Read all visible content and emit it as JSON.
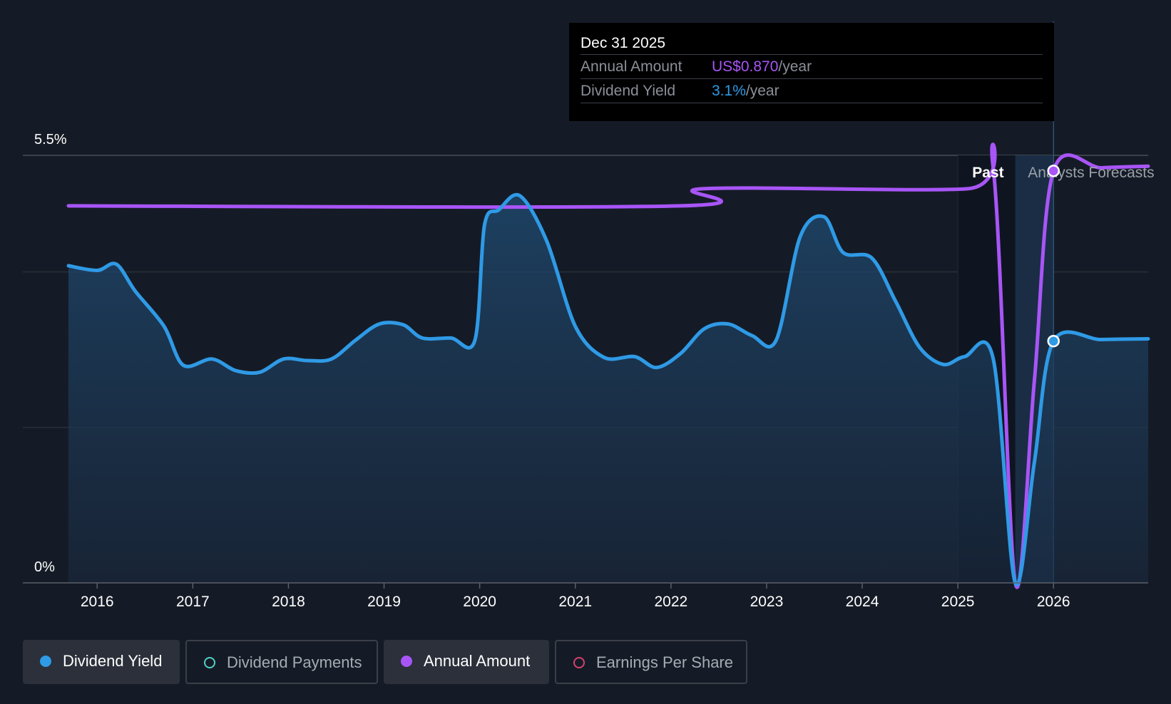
{
  "tooltip": {
    "date": "Dec 31 2025",
    "annual_label": "Annual Amount",
    "annual_value": "US$0.870",
    "annual_unit": "/year",
    "yield_label": "Dividend Yield",
    "yield_value": "3.1%",
    "yield_unit": "/year"
  },
  "legend": [
    {
      "label": "Dividend Yield",
      "color": "#2f9ae6",
      "active": true
    },
    {
      "label": "Dividend Payments",
      "color": "#4fd1c5",
      "active": false
    },
    {
      "label": "Annual Amount",
      "color": "#a855f7",
      "active": true
    },
    {
      "label": "Earnings Per Share",
      "color": "#d6406e",
      "active": false
    }
  ],
  "chart_data": {
    "type": "line",
    "y_tick_labels": [
      "5.5%",
      "0%"
    ],
    "ylim": [
      0,
      5.5
    ],
    "x_tick_labels": [
      "2016",
      "2017",
      "2018",
      "2019",
      "2020",
      "2021",
      "2022",
      "2023",
      "2024",
      "2025",
      "2026"
    ],
    "xlim": [
      2015.7,
      2026.99
    ],
    "region_labels": {
      "past": "Past",
      "forecast": "Analysts Forecasts"
    },
    "past_end": 2025.0,
    "forecast_start": 2026.0,
    "series": [
      {
        "name": "Dividend Yield",
        "color": "#2f9ae6",
        "x": [
          2015.7,
          2016.0,
          2016.2,
          2016.4,
          2016.7,
          2016.9,
          2017.2,
          2017.45,
          2017.7,
          2017.95,
          2018.2,
          2018.45,
          2018.7,
          2018.95,
          2019.2,
          2019.4,
          2019.7,
          2019.95,
          2020.05,
          2020.2,
          2020.42,
          2020.7,
          2021.0,
          2021.3,
          2021.62,
          2021.85,
          2022.1,
          2022.35,
          2022.6,
          2022.85,
          2023.1,
          2023.35,
          2023.6,
          2023.8,
          2024.1,
          2024.35,
          2024.6,
          2024.85,
          2025.07,
          2025.37,
          2025.6,
          2025.8,
          2026.0,
          2026.5,
          2026.99
        ],
        "y": [
          4.08,
          4.02,
          4.1,
          3.75,
          3.3,
          2.8,
          2.88,
          2.73,
          2.71,
          2.88,
          2.86,
          2.88,
          3.12,
          3.33,
          3.32,
          3.15,
          3.15,
          3.12,
          4.6,
          4.8,
          4.98,
          4.4,
          3.3,
          2.9,
          2.91,
          2.77,
          2.95,
          3.27,
          3.33,
          3.18,
          3.12,
          4.45,
          4.71,
          4.25,
          4.18,
          3.62,
          3.03,
          2.81,
          2.91,
          2.88,
          0.0,
          1.55,
          3.11,
          3.13,
          3.14
        ]
      },
      {
        "name": "Annual Amount",
        "color": "#a855f7",
        "x": [
          2015.7,
          2022.1,
          2022.33,
          2025.1,
          2025.37,
          2025.6,
          2025.8,
          2026.0,
          2026.5,
          2026.99
        ],
        "y": [
          4.85,
          4.85,
          5.07,
          5.07,
          5.33,
          0.0,
          2.6,
          5.3,
          5.34,
          5.36
        ]
      }
    ]
  }
}
